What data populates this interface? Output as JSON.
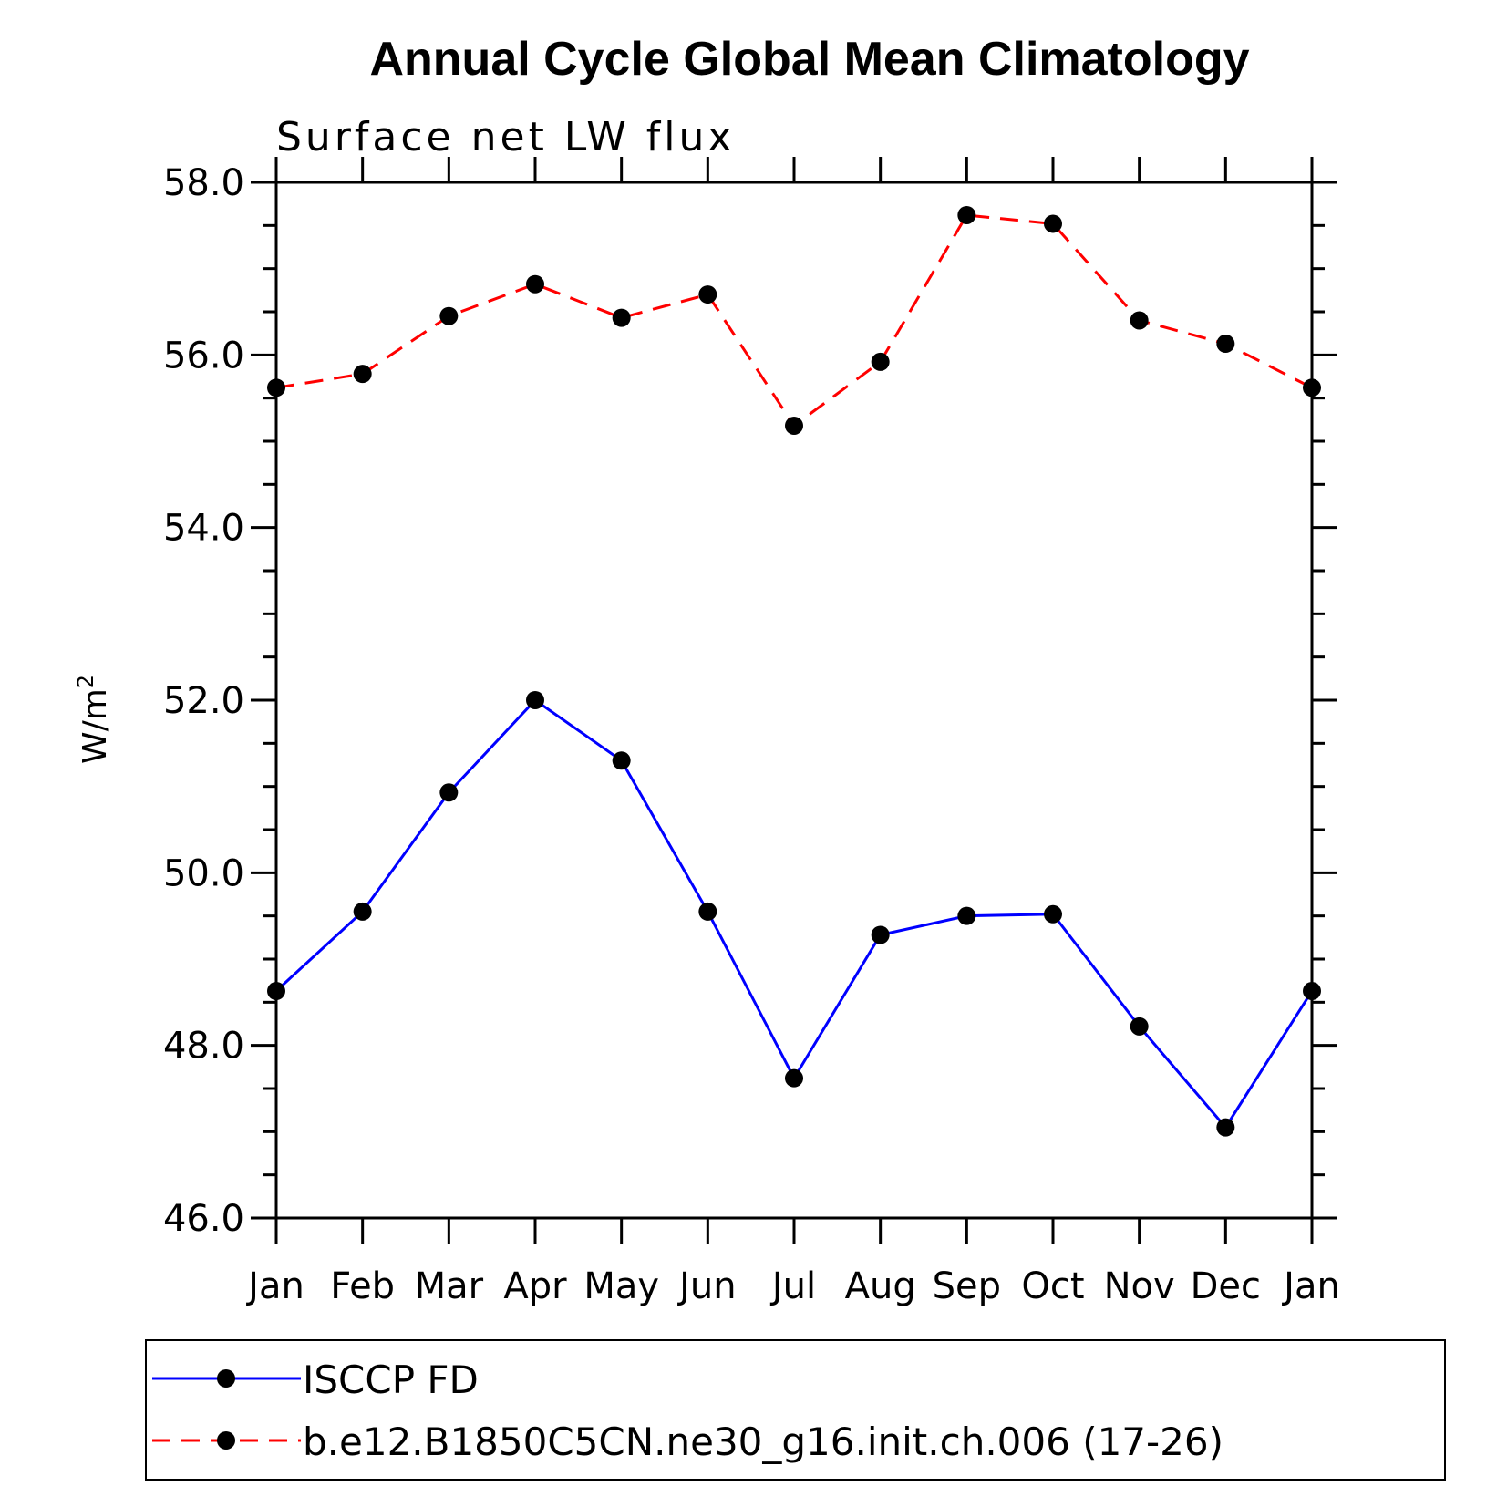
{
  "chart_data": {
    "type": "line",
    "title": "Annual Cycle Global Mean Climatology",
    "subtitle": "Surface net LW flux",
    "ylabel": "W/m",
    "ylabel_superscript": "2",
    "xlabel": "",
    "categories": [
      "Jan",
      "Feb",
      "Mar",
      "Apr",
      "May",
      "Jun",
      "Jul",
      "Aug",
      "Sep",
      "Oct",
      "Nov",
      "Dec",
      "Jan"
    ],
    "ylim": [
      46.0,
      58.0
    ],
    "yticks": [
      46.0,
      48.0,
      50.0,
      52.0,
      54.0,
      56.0,
      58.0
    ],
    "ytick_labels": [
      "46.0",
      "48.0",
      "50.0",
      "52.0",
      "54.0",
      "56.0",
      "58.0"
    ],
    "grid": false,
    "legend_position": "bottom",
    "series": [
      {
        "name": "ISCCP FD",
        "color": "#0000ff",
        "style": "solid",
        "values": [
          48.63,
          49.55,
          50.93,
          52.0,
          51.3,
          49.55,
          47.62,
          49.28,
          49.5,
          49.52,
          48.22,
          47.05,
          48.63
        ]
      },
      {
        "name": "b.e12.B1850C5CN.ne30_g16.init.ch.006 (17-26)",
        "color": "#ff0000",
        "style": "dashed",
        "values": [
          55.62,
          55.78,
          56.45,
          56.82,
          56.43,
          56.7,
          55.18,
          55.92,
          57.62,
          57.52,
          56.4,
          56.13,
          55.62
        ]
      }
    ]
  }
}
